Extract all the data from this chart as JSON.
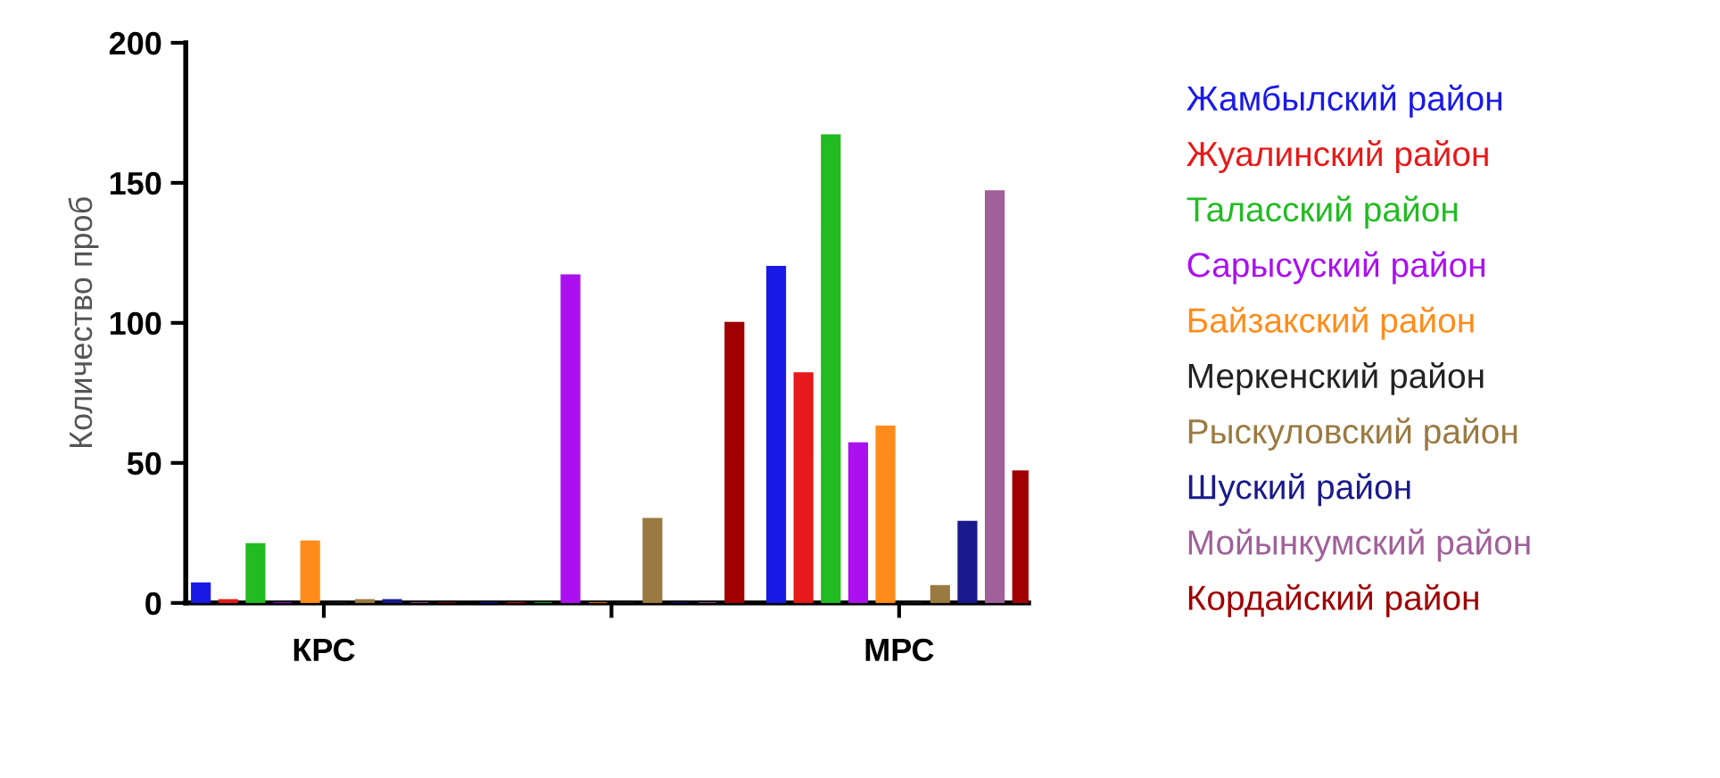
{
  "chart_data": {
    "type": "bar",
    "ylabel": "Количество проб",
    "categories": [
      "КРС",
      null,
      "МРС"
    ],
    "series": [
      {
        "name": "Жамбылский район",
        "color": "#1a1ae6",
        "values": [
          7,
          0,
          120
        ]
      },
      {
        "name": "Жуалинский район",
        "color": "#e61a1a",
        "values": [
          1,
          0,
          82
        ]
      },
      {
        "name": "Таласский район",
        "color": "#22bb22",
        "values": [
          21,
          0,
          167
        ]
      },
      {
        "name": "Сарысуский район",
        "color": "#aa11ee",
        "values": [
          0,
          117,
          57
        ]
      },
      {
        "name": "Байзакский район",
        "color": "#ff8c1a",
        "values": [
          22,
          0,
          63
        ]
      },
      {
        "name": "Меркенский район",
        "color": "#222222",
        "values": [
          0,
          0,
          0
        ]
      },
      {
        "name": "Рыскуловский район",
        "color": "#9a7a40",
        "values": [
          1,
          30,
          6
        ]
      },
      {
        "name": "Шуский район",
        "color": "#1a1a8c",
        "values": [
          1,
          0,
          29
        ]
      },
      {
        "name": "Мойынкумский район",
        "color": "#a0609a",
        "values": [
          0,
          0,
          147
        ]
      },
      {
        "name": "Кордайский район",
        "color": "#a00000",
        "values": [
          0,
          100,
          47
        ]
      }
    ],
    "ylim": [
      0,
      200
    ],
    "yticks": [
      0,
      50,
      100,
      150,
      200
    ],
    "grid": false,
    "legend": "right"
  }
}
